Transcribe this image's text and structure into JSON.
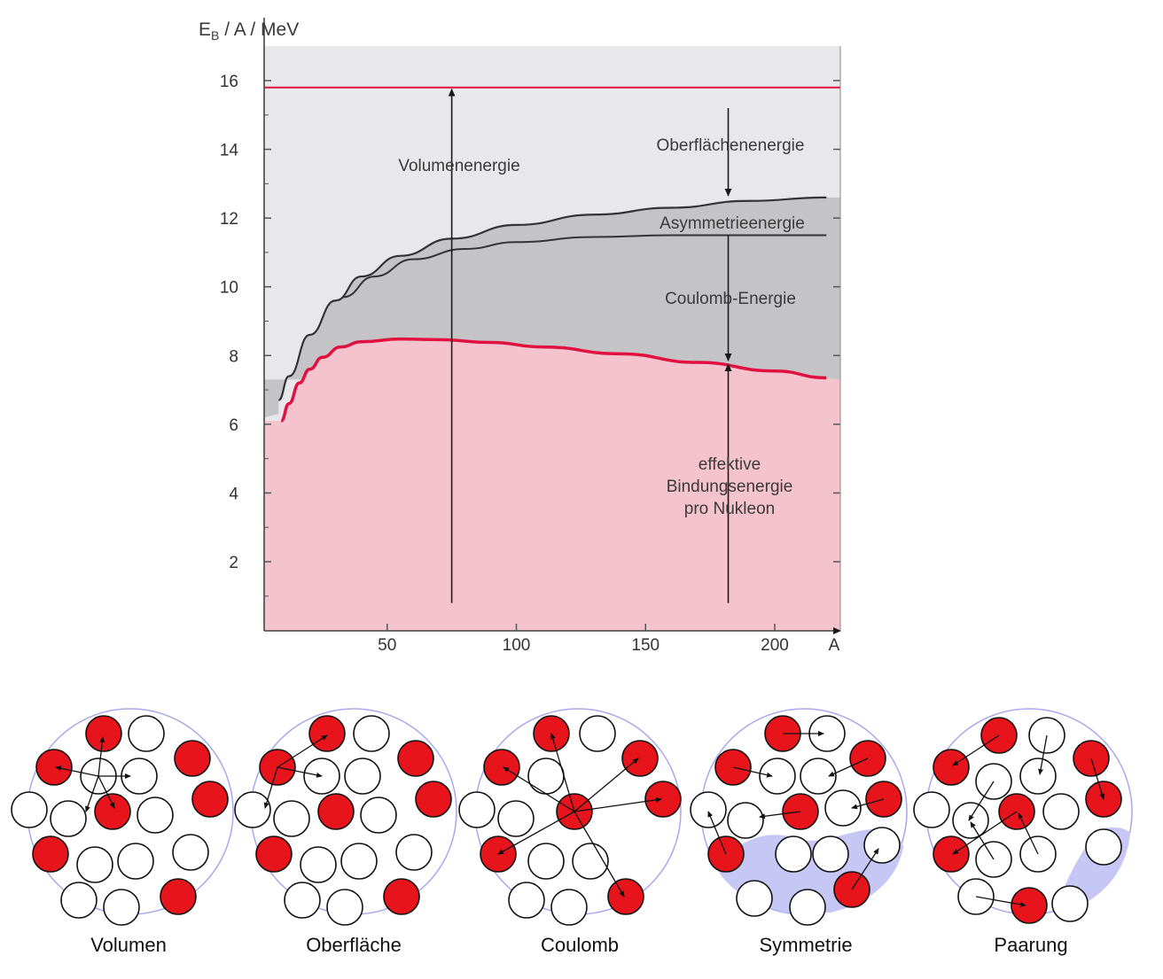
{
  "chart_data": {
    "type": "area",
    "ylabel_main": "E",
    "ylabel_sub": "B",
    "ylabel_rest": " / A  /  MeV",
    "xlabel": "A",
    "y_ticks": [
      "2",
      "4",
      "6",
      "8",
      "10",
      "12",
      "14",
      "16"
    ],
    "x_ticks": [
      "50",
      "100",
      "150",
      "200"
    ],
    "xlim": [
      0,
      220
    ],
    "ylim": [
      0,
      17
    ],
    "series": [
      {
        "key": "volume",
        "x": [
          0,
          220
        ],
        "y": [
          15.8,
          15.8
        ]
      },
      {
        "key": "surface",
        "x": [
          8,
          12,
          20,
          30,
          40,
          55,
          75,
          100,
          130,
          160,
          190,
          220
        ],
        "y": [
          6.7,
          7.4,
          8.6,
          9.6,
          10.3,
          10.9,
          11.4,
          11.8,
          12.1,
          12.3,
          12.5,
          12.6
        ]
      },
      {
        "key": "asymmetry",
        "x": [
          33,
          45,
          60,
          80,
          100,
          130,
          160,
          190,
          220
        ],
        "y": [
          9.7,
          10.3,
          10.8,
          11.1,
          11.3,
          11.45,
          11.5,
          11.5,
          11.5
        ]
      },
      {
        "key": "effective",
        "x": [
          9,
          12,
          16,
          20,
          25,
          32,
          40,
          55,
          70,
          90,
          110,
          140,
          170,
          200,
          220
        ],
        "y": [
          6.1,
          6.6,
          7.2,
          7.6,
          7.95,
          8.25,
          8.4,
          8.48,
          8.46,
          8.38,
          8.25,
          8.05,
          7.8,
          7.55,
          7.35
        ]
      }
    ],
    "arrows": [
      {
        "from": 0.8,
        "to": 15.8,
        "x": 75
      },
      {
        "from": 15.2,
        "to": 12.6,
        "x": 182
      },
      {
        "from": 11.5,
        "to": 7.8,
        "x": 182
      },
      {
        "from": 0.8,
        "to": 7.8,
        "x": 182
      }
    ],
    "annotations": {
      "volume": "Volumenenergie",
      "surface": "Oberflächenenergie",
      "asymmetry": "Asymmetrieenergie",
      "coulomb": "Coulomb-Energie",
      "effective_1": "effektive",
      "effective_2": "Bindungsenergie",
      "effective_3": "pro Nukleon"
    },
    "colors": {
      "background": "#e8e8ea",
      "gray_band": "#c4c4c6",
      "pink": "#f4c3cd",
      "red_line": "#e01040",
      "dark_line": "#333333",
      "nucleon_red": "#e8141c",
      "nucleus_outline": "#a8a8ee",
      "nucleus_fill": "#c7c7f5"
    }
  },
  "nuclei": [
    {
      "caption": "Volumen"
    },
    {
      "caption": "Oberfläche"
    },
    {
      "caption": "Coulomb"
    },
    {
      "caption": "Symmetrie"
    },
    {
      "caption": "Paarung"
    }
  ]
}
